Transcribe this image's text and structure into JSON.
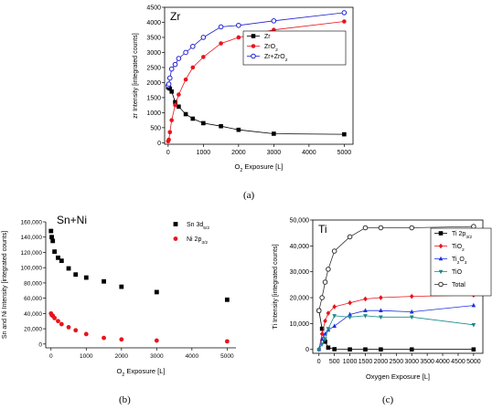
{
  "chart_data": [
    {
      "type": "scatter",
      "panel_label": "(a)",
      "title": "Zr",
      "xlabel": "O2 Exposure [L]",
      "xlabel_main": "O",
      "xlabel_sub": "2",
      "xlabel_rest": " Exposure [L]",
      "ylabel": "zr Intensity [integrated counts]",
      "xlim": [
        -100,
        5250
      ],
      "ylim": [
        -50,
        4500
      ],
      "xticks": [
        0,
        1000,
        2000,
        3000,
        4000,
        5000
      ],
      "yticks": [
        0,
        500,
        1000,
        1500,
        2000,
        2500,
        3000,
        3500,
        4000,
        4500
      ],
      "xtick_labels": [
        "0",
        "1000",
        "2000",
        "3000",
        "4000",
        "5000"
      ],
      "ytick_labels": [
        "0",
        "500",
        "1000",
        "1500",
        "2000",
        "2500",
        "3000",
        "3500",
        "4000",
        "4500"
      ],
      "legend_position": "right",
      "series": [
        {
          "name": "Zr",
          "name_main": "Zr",
          "name_sub": "",
          "name_rest": "",
          "color": "#000000",
          "marker": "square",
          "line": true,
          "x": [
            0,
            20,
            50,
            100,
            200,
            300,
            500,
            700,
            1000,
            1500,
            2000,
            3000,
            5000
          ],
          "y": [
            1850,
            1830,
            1800,
            1700,
            1350,
            1200,
            950,
            800,
            650,
            550,
            430,
            300,
            280
          ]
        },
        {
          "name": "ZrO2",
          "name_main": "ZrO",
          "name_sub": "2",
          "name_rest": "",
          "color": "#e8141c",
          "marker": "circle",
          "line": true,
          "x": [
            0,
            20,
            50,
            100,
            200,
            300,
            500,
            700,
            1000,
            1500,
            2000,
            3000,
            5000
          ],
          "y": [
            50,
            100,
            350,
            750,
            1250,
            1600,
            2100,
            2500,
            2850,
            3300,
            3500,
            3750,
            4030
          ]
        },
        {
          "name": "Zr+ZrO2",
          "name_main": "Zr+ZrO",
          "name_sub": "2",
          "name_rest": "",
          "color": "#1f1fd0",
          "marker": "open-circle",
          "line": true,
          "x": [
            0,
            20,
            50,
            100,
            200,
            300,
            500,
            700,
            1000,
            1500,
            2000,
            3000,
            5000
          ],
          "y": [
            1900,
            1950,
            2150,
            2450,
            2600,
            2800,
            3000,
            3200,
            3500,
            3850,
            3900,
            4050,
            4320
          ]
        }
      ]
    },
    {
      "type": "scatter",
      "panel_label": "(b)",
      "title": "Sn+Ni",
      "xlabel": "O2 Exposure [L]",
      "xlabel_main": "O",
      "xlabel_sub": "2",
      "xlabel_rest": " Exposure [L]",
      "ylabel": "Sn and Ni Intensity [integrated counts]",
      "xlim": [
        -150,
        5250
      ],
      "ylim": [
        -5000,
        160000
      ],
      "xticks": [
        0,
        1000,
        2000,
        3000,
        4000,
        5000
      ],
      "yticks": [
        0,
        20000,
        40000,
        60000,
        80000,
        100000,
        120000,
        140000,
        160000
      ],
      "xtick_labels": [
        "0",
        "1000",
        "2000",
        "3000",
        "4000",
        "5000"
      ],
      "ytick_labels": [
        "0",
        "20,000",
        "40,000",
        "60,000",
        "80,000",
        "100,000",
        "120,000",
        "140,000",
        "160,000"
      ],
      "legend_position": "top-right",
      "series": [
        {
          "name": "Sn 3d5/2",
          "name_main": "Sn 3d",
          "name_sub": "5/2",
          "name_rest": "",
          "color": "#000000",
          "marker": "square",
          "line": false,
          "x": [
            0,
            20,
            50,
            100,
            200,
            300,
            500,
            700,
            1000,
            1500,
            2000,
            3000,
            5000
          ],
          "y": [
            148000,
            140000,
            135000,
            121000,
            113000,
            109000,
            99000,
            91000,
            87000,
            82000,
            75000,
            68000,
            58000
          ]
        },
        {
          "name": "Ni 2p3/2",
          "name_main": "Ni 2p",
          "name_sub": "3/2",
          "name_rest": "",
          "color": "#e8141c",
          "marker": "circle",
          "line": false,
          "x": [
            0,
            20,
            50,
            100,
            200,
            300,
            500,
            700,
            1000,
            1500,
            2000,
            3000,
            5000
          ],
          "y": [
            40000,
            38000,
            37000,
            34000,
            30000,
            26000,
            22000,
            18000,
            13000,
            8000,
            6000,
            4500,
            3500
          ]
        }
      ]
    },
    {
      "type": "line",
      "panel_label": "(c)",
      "title": "Ti",
      "xlabel": "Oxygen Exposure [L]",
      "xlabel_main": "Oxygen Exposure [L]",
      "xlabel_sub": "",
      "xlabel_rest": "",
      "ylabel": "Ti Intensity [integrated counts]",
      "xlim": [
        -200,
        5300
      ],
      "ylim": [
        -1500,
        50000
      ],
      "xticks": [
        0,
        500,
        1000,
        1500,
        2000,
        2500,
        3000,
        3500,
        4000,
        4500,
        5000
      ],
      "yticks": [
        0,
        10000,
        20000,
        30000,
        40000,
        50000
      ],
      "xtick_labels": [
        "0",
        "500",
        "1000",
        "1500",
        "2000",
        "2500",
        "3000",
        "3500",
        "4000",
        "4500",
        "5000"
      ],
      "ytick_labels": [
        "0",
        "10,000",
        "20,000",
        "30,000",
        "40,000",
        "50,000"
      ],
      "legend_position": "right",
      "series": [
        {
          "name": "Ti 2p3/2",
          "name_main": "Ti 2p",
          "name_sub": "3/2",
          "name_rest": "",
          "color": "#000000",
          "marker": "square",
          "line": true,
          "x": [
            0,
            100,
            200,
            300,
            500,
            1000,
            1500,
            2000,
            3000,
            5000
          ],
          "y": [
            15000,
            8000,
            3000,
            700,
            100,
            0,
            0,
            0,
            0,
            0
          ]
        },
        {
          "name": "TiO2",
          "name_main": "TiO",
          "name_sub": "2",
          "name_rest": "",
          "color": "#e8141c",
          "marker": "diamond",
          "line": true,
          "x": [
            0,
            100,
            200,
            300,
            500,
            1000,
            1500,
            2000,
            3000,
            5000
          ],
          "y": [
            0,
            6000,
            11000,
            14000,
            16500,
            18000,
            19500,
            20000,
            20500,
            21000
          ]
        },
        {
          "name": "Ti2O3",
          "name_main": "Ti",
          "name_sub": "2",
          "name_rest": "O",
          "name_sub2": "3",
          "color": "#1f2fe0",
          "marker": "triangle-up",
          "line": true,
          "x": [
            0,
            100,
            200,
            300,
            500,
            1000,
            1500,
            2000,
            3000,
            5000
          ],
          "y": [
            0,
            4000,
            6000,
            7500,
            9000,
            13500,
            15000,
            15000,
            14500,
            17000
          ]
        },
        {
          "name": "TiO",
          "name_main": "TiO",
          "name_sub": "",
          "name_rest": "",
          "color": "#1a8a8a",
          "marker": "triangle-down",
          "line": true,
          "x": [
            0,
            100,
            200,
            300,
            500,
            1000,
            1500,
            2000,
            3000,
            5000
          ],
          "y": [
            0,
            2000,
            4000,
            8000,
            13000,
            12500,
            13000,
            12500,
            12500,
            9500
          ]
        },
        {
          "name": "Total",
          "name_main": "Total",
          "name_sub": "",
          "name_rest": "",
          "color": "#333333",
          "marker": "open-circle",
          "line": true,
          "x": [
            0,
            100,
            200,
            300,
            500,
            1000,
            1500,
            2000,
            3000,
            5000
          ],
          "y": [
            15000,
            20000,
            26000,
            31000,
            38000,
            43500,
            47000,
            47000,
            47000,
            47500
          ]
        }
      ]
    }
  ]
}
